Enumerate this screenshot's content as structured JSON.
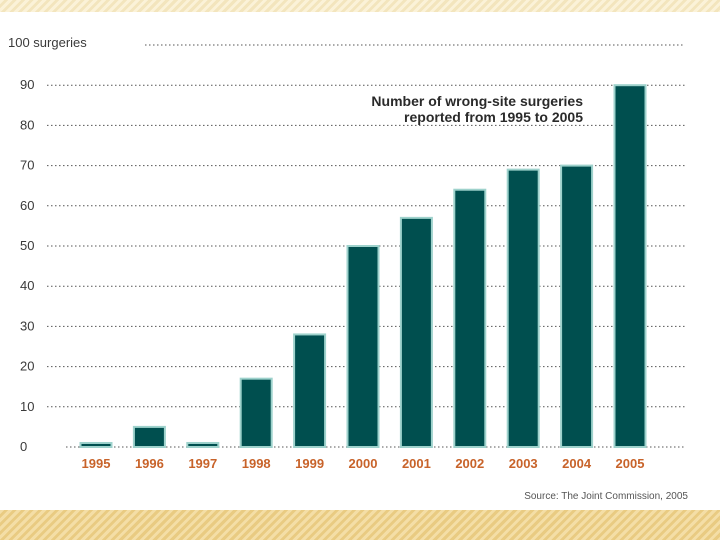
{
  "chart_data": {
    "type": "bar",
    "title_lines": [
      "Number of wrong-site surgeries",
      "reported from 1995 to 2005"
    ],
    "categories": [
      "1995",
      "1996",
      "1997",
      "1998",
      "1999",
      "2000",
      "2001",
      "2002",
      "2003",
      "2004",
      "2005"
    ],
    "values": [
      1,
      5,
      1,
      17,
      28,
      50,
      57,
      64,
      69,
      70,
      90
    ],
    "ylim": [
      0,
      100
    ],
    "yticks": [
      0,
      10,
      20,
      30,
      40,
      50,
      60,
      70,
      80,
      90
    ],
    "top_label": "100 surgeries",
    "xlabel": "",
    "ylabel": "",
    "grid": true,
    "grid_style": "dotted",
    "source": "Source: The Joint Commission, 2005",
    "colors": {
      "bar": "#004f4f",
      "bar_edge": "#9ed2cc",
      "xtick": "#c8632a",
      "grid": "#555555",
      "ytick": "#3a3a3a"
    }
  }
}
